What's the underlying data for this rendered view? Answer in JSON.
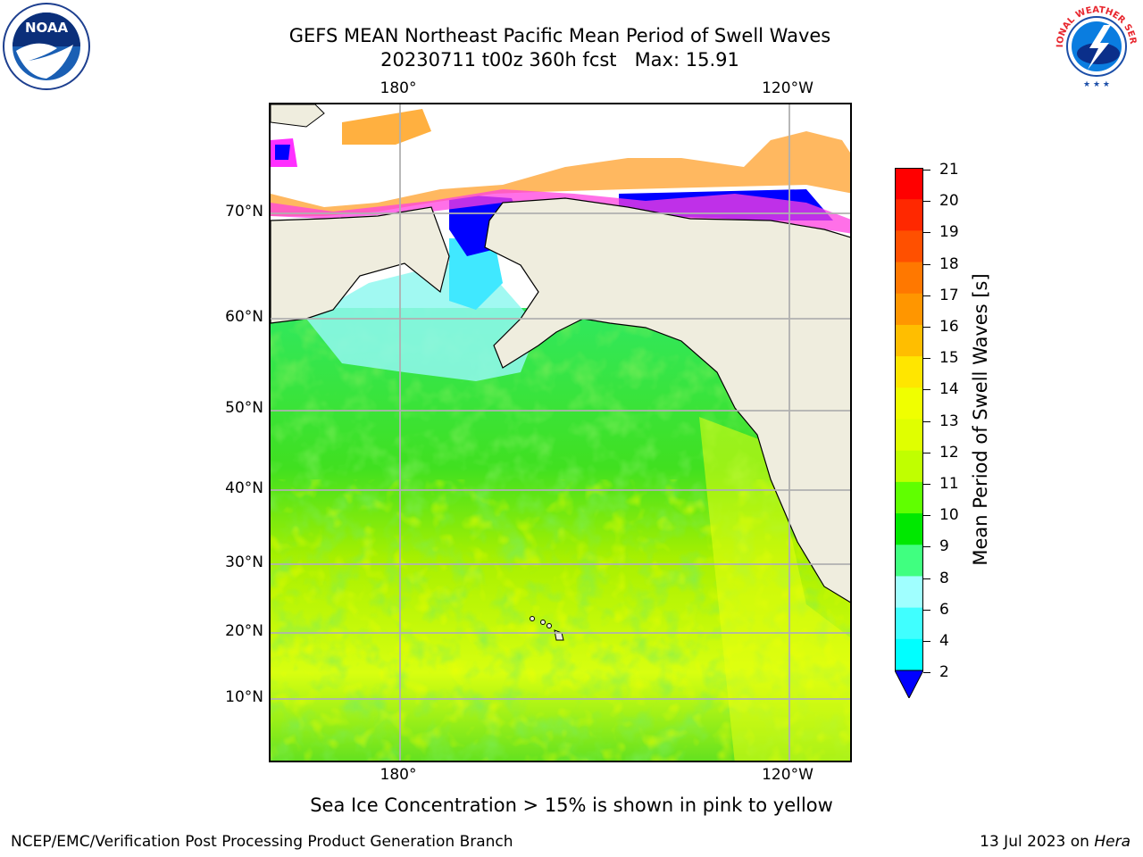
{
  "title": {
    "line1": "GEFS MEAN Northeast Pacific Mean Period of Swell Waves",
    "line2": "20230711 t00z 360h fcst   Max: 15.91"
  },
  "logos": {
    "left": {
      "icon": "noaa-logo-icon",
      "text": "NOAA"
    },
    "right": {
      "icon": "nws-logo-icon",
      "text": "NATIONAL WEATHER SERVICE"
    }
  },
  "map": {
    "lat_labels": [
      "70°N",
      "60°N",
      "50°N",
      "40°N",
      "30°N",
      "20°N",
      "10°N"
    ],
    "lon_labels_top": [
      "180°",
      "120°W"
    ],
    "lon_labels_bottom": [
      "180°",
      "120°W"
    ],
    "land_color": "#efedde",
    "ice_colors": [
      "#ff00ff",
      "#ff80c0",
      "#ffb050",
      "#ffc070"
    ]
  },
  "colorbar": {
    "label": "Mean Period of Swell Waves [s]",
    "ticks": [
      "21",
      "20",
      "19",
      "18",
      "17",
      "16",
      "15",
      "14",
      "13",
      "12",
      "11",
      "10",
      "9",
      "8",
      "6",
      "4",
      "2"
    ],
    "colors": [
      "#ff0000",
      "#ff2800",
      "#ff5000",
      "#ff7800",
      "#ff9600",
      "#ffbe00",
      "#ffe600",
      "#f0ff00",
      "#e0ff00",
      "#c0ff00",
      "#60ff00",
      "#00e800",
      "#40ff80",
      "#a0ffff",
      "#40ffff",
      "#00ffff",
      "#00c8ff",
      "#0080ff",
      "#0000ff"
    ]
  },
  "notes": {
    "ice": "Sea Ice Concentration > 15% is shown in pink to yellow",
    "footer_left": "NCEP/EMC/Verification Post Processing Product Generation Branch",
    "footer_right_prefix": "13 Jul 2023 on ",
    "footer_right_machine": "Hera"
  }
}
